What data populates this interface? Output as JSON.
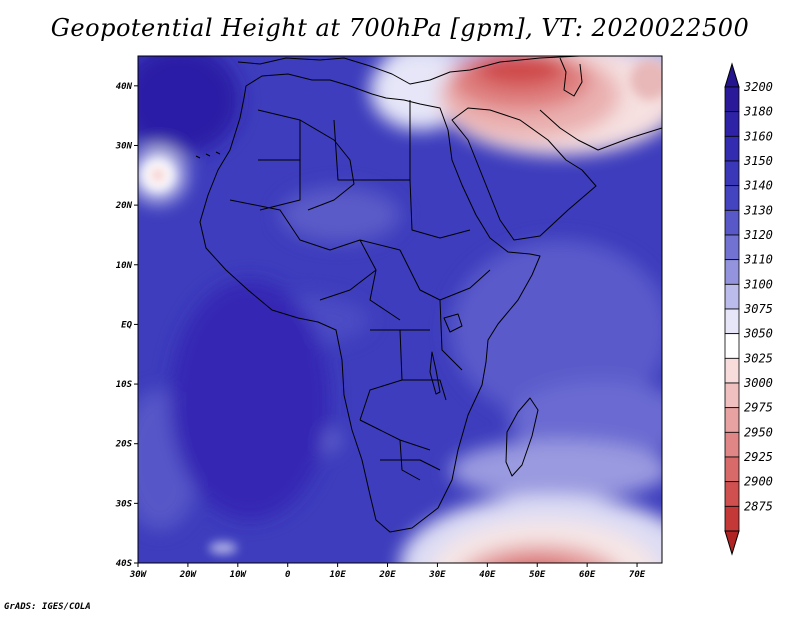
{
  "title": "Geopotential Height at 700hPa [gpm], VT: 2020022500",
  "credit": "GrADS: IGES/COLA",
  "map": {
    "variable": "Geopotential Height",
    "level": "700hPa",
    "units": "gpm",
    "valid_time": "2020022500",
    "lon_range": [
      -30,
      75
    ],
    "lat_range": [
      -40,
      45
    ],
    "lat_ticks": [
      {
        "value": 40,
        "label": "40N"
      },
      {
        "value": 30,
        "label": "30N"
      },
      {
        "value": 20,
        "label": "20N"
      },
      {
        "value": 10,
        "label": "10N"
      },
      {
        "value": 0,
        "label": "EQ"
      },
      {
        "value": -10,
        "label": "10S"
      },
      {
        "value": -20,
        "label": "20S"
      },
      {
        "value": -30,
        "label": "30S"
      },
      {
        "value": -40,
        "label": "40S"
      }
    ],
    "lon_ticks": [
      {
        "value": -30,
        "label": "30W"
      },
      {
        "value": -20,
        "label": "20W"
      },
      {
        "value": -10,
        "label": "10W"
      },
      {
        "value": 0,
        "label": "0"
      },
      {
        "value": 10,
        "label": "10E"
      },
      {
        "value": 20,
        "label": "20E"
      },
      {
        "value": 30,
        "label": "30E"
      },
      {
        "value": 40,
        "label": "40E"
      },
      {
        "value": 50,
        "label": "50E"
      },
      {
        "value": 60,
        "label": "60E"
      },
      {
        "value": 70,
        "label": "70E"
      }
    ]
  },
  "colorbar": {
    "levels": [
      {
        "label": "3200",
        "color": "#2a1a9a"
      },
      {
        "label": "3180",
        "color": "#2e22a6"
      },
      {
        "label": "3160",
        "color": "#332cb0"
      },
      {
        "label": "3150",
        "color": "#3a38b8"
      },
      {
        "label": "3140",
        "color": "#4444c0"
      },
      {
        "label": "3130",
        "color": "#5858c8"
      },
      {
        "label": "3120",
        "color": "#7272d2"
      },
      {
        "label": "3110",
        "color": "#9494de"
      },
      {
        "label": "3100",
        "color": "#bcbcec"
      },
      {
        "label": "3075",
        "color": "#e6e6f8"
      },
      {
        "label": "3050",
        "color": "#ffffff"
      },
      {
        "label": "3025",
        "color": "#f8dcdc"
      },
      {
        "label": "3000",
        "color": "#f0c0c0"
      },
      {
        "label": "2975",
        "color": "#e8a2a2"
      },
      {
        "label": "2950",
        "color": "#e08686"
      },
      {
        "label": "2925",
        "color": "#d86a6a"
      },
      {
        "label": "2900",
        "color": "#d05050"
      },
      {
        "label": "2875",
        "color": "#c43838"
      }
    ],
    "top_arrow_color": "#24148e",
    "bottom_arrow_color": "#b02424"
  }
}
